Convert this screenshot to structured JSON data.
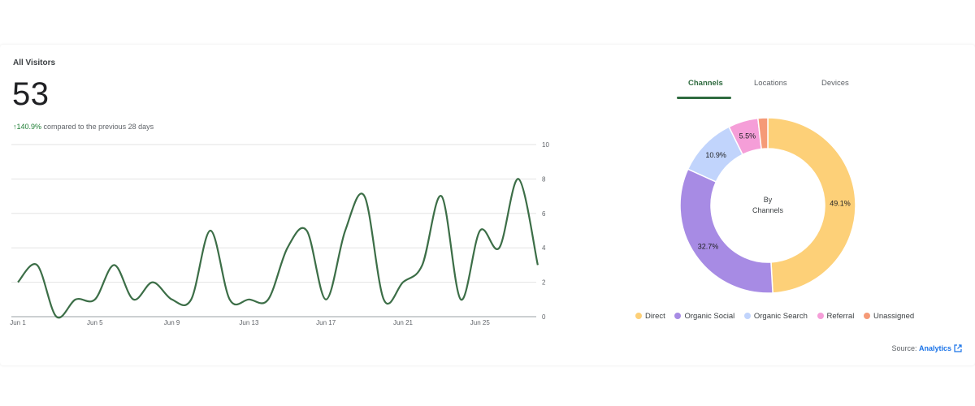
{
  "visitors": {
    "title": "All Visitors",
    "count": "53",
    "change_arrow": "↑",
    "change_pct": "140.9%",
    "change_text": " compared to the previous 28 days"
  },
  "tabs": [
    {
      "label": "Channels",
      "active": true
    },
    {
      "label": "Locations",
      "active": false
    },
    {
      "label": "Devices",
      "active": false
    }
  ],
  "donut": {
    "center_line1": "By",
    "center_line2": "Channels"
  },
  "legend": [
    {
      "label": "Direct",
      "color": "#fdd078"
    },
    {
      "label": "Organic Social",
      "color": "#a78be4"
    },
    {
      "label": "Organic Search",
      "color": "#c1d4fc"
    },
    {
      "label": "Referral",
      "color": "#f59ed8"
    },
    {
      "label": "Unassigned",
      "color": "#f59a77"
    }
  ],
  "source": {
    "prefix": "Source: ",
    "link": "Analytics",
    "icon": "external-link-icon"
  },
  "accent_color": "#3c6e47",
  "chart_data": [
    {
      "type": "line",
      "x_tick_labels": [
        "Jun 1",
        "Jun 5",
        "Jun 9",
        "Jun 13",
        "Jun 17",
        "Jun 21",
        "Jun 25"
      ],
      "y_ticks": [
        0,
        2,
        4,
        6,
        8,
        10
      ],
      "ylim": [
        0,
        10
      ],
      "y_axis_side": "right",
      "grid": true,
      "series": [
        {
          "values": [
            2,
            3,
            0,
            1,
            1,
            3,
            1,
            2,
            1,
            1,
            5,
            1,
            1,
            1,
            4,
            5,
            1,
            5,
            7,
            1,
            2,
            3,
            7,
            1,
            5,
            4,
            8,
            3
          ],
          "color": "#3c6e47"
        }
      ]
    },
    {
      "type": "pie",
      "donut": true,
      "labels": [
        "Direct",
        "Organic Social",
        "Organic Search",
        "Referral",
        "Unassigned"
      ],
      "values": [
        49.1,
        32.7,
        10.9,
        5.5,
        1.8
      ],
      "value_labels": [
        "49.1%",
        "32.7%",
        "10.9%",
        "5.5%",
        ""
      ],
      "colors": [
        "#fdd078",
        "#a78be4",
        "#c1d4fc",
        "#f59ed8",
        "#f59a77"
      ]
    }
  ]
}
